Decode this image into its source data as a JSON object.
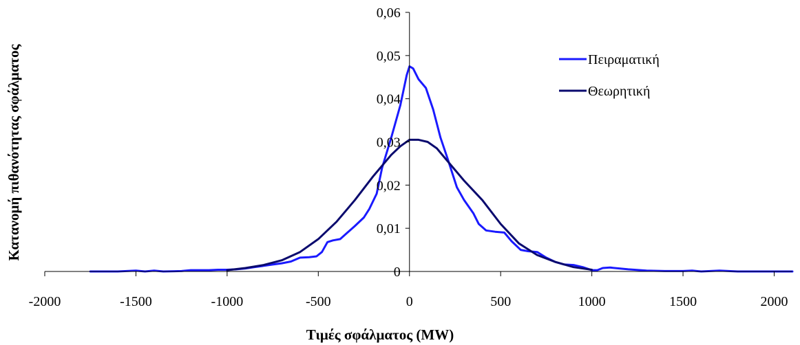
{
  "chart_data": {
    "type": "line",
    "title": "",
    "xlabel": "Τιμές σφάλματος (MW)",
    "ylabel": "Κατανομή πιθανότητας σφάλματος",
    "xlim": [
      -2000,
      2100
    ],
    "ylim": [
      0,
      0.06
    ],
    "x_ticks": [
      "-2000",
      "-1500",
      "-1000",
      "-500",
      "0",
      "500",
      "1000",
      "1500",
      "2000"
    ],
    "y_ticks": [
      "0",
      "0,01",
      "0,02",
      "0,03",
      "0,04",
      "0,05",
      "0,06"
    ],
    "grid": false,
    "legend_position": "top-right",
    "series": [
      {
        "name": "Πειραματική",
        "color": "#1a1aff",
        "points": [
          [
            -1750,
            0
          ],
          [
            -1600,
            0
          ],
          [
            -1500,
            0.0002
          ],
          [
            -1450,
            0
          ],
          [
            -1400,
            0.0002
          ],
          [
            -1350,
            0
          ],
          [
            -1250,
            0.0001
          ],
          [
            -1200,
            0.0003
          ],
          [
            -1100,
            0.0003
          ],
          [
            -1050,
            0.0004
          ],
          [
            -1000,
            0.0004
          ],
          [
            -950,
            0.0005
          ],
          [
            -900,
            0.0007
          ],
          [
            -850,
            0.001
          ],
          [
            -800,
            0.0013
          ],
          [
            -750,
            0.0016
          ],
          [
            -700,
            0.0019
          ],
          [
            -650,
            0.0023
          ],
          [
            -600,
            0.0032
          ],
          [
            -550,
            0.0033
          ],
          [
            -510,
            0.0035
          ],
          [
            -480,
            0.0045
          ],
          [
            -450,
            0.0068
          ],
          [
            -420,
            0.0072
          ],
          [
            -380,
            0.0075
          ],
          [
            -340,
            0.009
          ],
          [
            -300,
            0.0105
          ],
          [
            -250,
            0.0125
          ],
          [
            -220,
            0.0145
          ],
          [
            -180,
            0.018
          ],
          [
            -150,
            0.024
          ],
          [
            -100,
            0.031
          ],
          [
            -50,
            0.0385
          ],
          [
            -15,
            0.0455
          ],
          [
            0,
            0.0475
          ],
          [
            20,
            0.047
          ],
          [
            50,
            0.0445
          ],
          [
            90,
            0.0425
          ],
          [
            130,
            0.0375
          ],
          [
            170,
            0.031
          ],
          [
            210,
            0.026
          ],
          [
            260,
            0.0195
          ],
          [
            300,
            0.0165
          ],
          [
            350,
            0.0135
          ],
          [
            380,
            0.011
          ],
          [
            420,
            0.0095
          ],
          [
            470,
            0.0092
          ],
          [
            520,
            0.009
          ],
          [
            560,
            0.007
          ],
          [
            610,
            0.005
          ],
          [
            650,
            0.0047
          ],
          [
            700,
            0.0045
          ],
          [
            750,
            0.0032
          ],
          [
            800,
            0.0022
          ],
          [
            850,
            0.0016
          ],
          [
            900,
            0.0015
          ],
          [
            950,
            0.001
          ],
          [
            1000,
            0.0003
          ],
          [
            1030,
            0.0003
          ],
          [
            1060,
            0.0008
          ],
          [
            1100,
            0.0009
          ],
          [
            1150,
            0.0007
          ],
          [
            1200,
            0.0005
          ],
          [
            1300,
            0.0002
          ],
          [
            1400,
            0.0001
          ],
          [
            1500,
            0.0001
          ],
          [
            1550,
            0.0002
          ],
          [
            1600,
            0
          ],
          [
            1700,
            0.0002
          ],
          [
            1800,
            0
          ],
          [
            2000,
            0
          ],
          [
            2100,
            0
          ]
        ]
      },
      {
        "name": "Θεωρητική",
        "color": "#0a0a6e",
        "points": [
          [
            -1000,
            0.0003
          ],
          [
            -900,
            0.0008
          ],
          [
            -800,
            0.0015
          ],
          [
            -700,
            0.0026
          ],
          [
            -600,
            0.0045
          ],
          [
            -500,
            0.0075
          ],
          [
            -400,
            0.0115
          ],
          [
            -300,
            0.0165
          ],
          [
            -200,
            0.022
          ],
          [
            -100,
            0.027
          ],
          [
            -50,
            0.029
          ],
          [
            0,
            0.0305
          ],
          [
            50,
            0.0305
          ],
          [
            100,
            0.03
          ],
          [
            150,
            0.0285
          ],
          [
            200,
            0.026
          ],
          [
            300,
            0.021
          ],
          [
            400,
            0.0165
          ],
          [
            500,
            0.011
          ],
          [
            600,
            0.0065
          ],
          [
            700,
            0.0038
          ],
          [
            800,
            0.0022
          ],
          [
            900,
            0.001
          ],
          [
            1000,
            0.0004
          ]
        ]
      }
    ]
  }
}
